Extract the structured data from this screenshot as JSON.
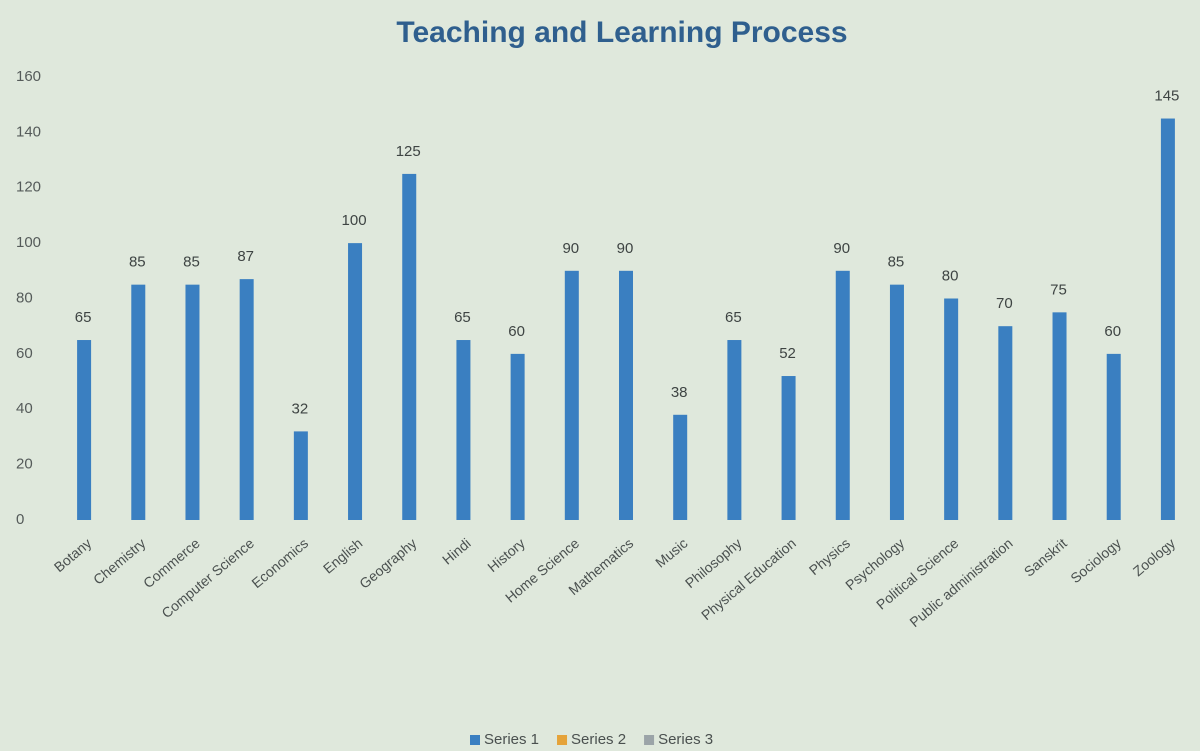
{
  "chart_data": {
    "type": "bar",
    "title": "Teaching and Learning Process",
    "categories": [
      "Botany",
      "Chemistry",
      "Commerce",
      "Computer Science",
      "Economics",
      "English",
      "Geography",
      "Hindi",
      "History",
      "Home Science",
      "Mathematics",
      "Music",
      "Philosophy",
      "Physical Education",
      "Physics",
      "Psychology",
      "Political Science",
      "Public administration",
      "Sanskrit",
      "Sociology",
      "Zoology"
    ],
    "series": [
      {
        "name": "Series 1",
        "color": "#3a7fc1",
        "values": [
          65,
          85,
          85,
          87,
          32,
          100,
          125,
          65,
          60,
          90,
          90,
          38,
          65,
          52,
          90,
          85,
          80,
          70,
          75,
          60,
          145
        ]
      },
      {
        "name": "Series 2",
        "color": "#e5a33a",
        "values": [
          null,
          null,
          null,
          null,
          null,
          null,
          null,
          null,
          null,
          null,
          null,
          null,
          null,
          null,
          null,
          null,
          null,
          null,
          null,
          null,
          null
        ]
      },
      {
        "name": "Series 3",
        "color": "#9ba4a8",
        "values": [
          null,
          null,
          null,
          null,
          null,
          null,
          null,
          null,
          null,
          null,
          null,
          null,
          null,
          null,
          null,
          null,
          null,
          null,
          null,
          null,
          null
        ]
      }
    ],
    "ylim": [
      0,
      160
    ],
    "yticks": [
      0,
      20,
      40,
      60,
      80,
      100,
      120,
      140,
      160
    ],
    "grid": false,
    "legend": "bottom"
  }
}
